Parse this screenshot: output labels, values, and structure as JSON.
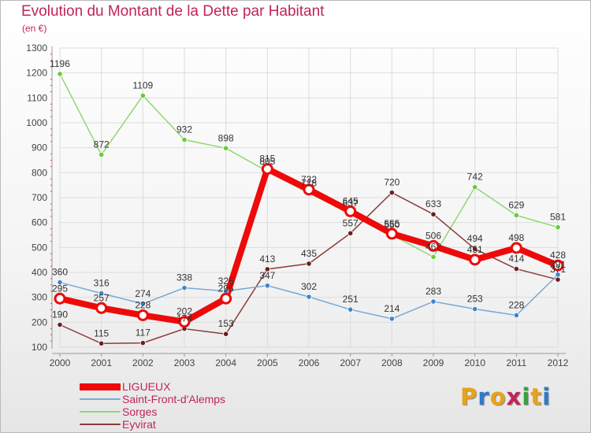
{
  "header": {
    "title": "Evolution du Montant de la Dette par Habitant",
    "subtitle": "(en €)"
  },
  "brand": {
    "letters": [
      "P",
      "r",
      "o",
      "x",
      "i",
      "t",
      "i"
    ],
    "colors": [
      "#e8a317",
      "#2f79c8",
      "#e8a317",
      "#c0245c",
      "#3aa03a",
      "#e8a317",
      "#2f79c8"
    ]
  },
  "chart_data": {
    "type": "line",
    "title": "Evolution du Montant de la Dette par Habitant",
    "subtitle": "(en €)",
    "xlabel": "",
    "ylabel": "",
    "x": [
      2000,
      2001,
      2002,
      2003,
      2004,
      2005,
      2006,
      2007,
      2008,
      2009,
      2010,
      2011,
      2012
    ],
    "x_labels": [
      "2000",
      "2001",
      "2002",
      "2003",
      "2004",
      "2005",
      "2006",
      "2007",
      "2008",
      "2009",
      "2010",
      "2011",
      "2012"
    ],
    "ylim": [
      100,
      1300
    ],
    "yticks": [
      100,
      200,
      300,
      400,
      500,
      600,
      700,
      800,
      900,
      1000,
      1100,
      1200,
      1300
    ],
    "ytick_labels": [
      "100",
      "200",
      "300",
      "400",
      "500",
      "600",
      "700",
      "800",
      "900",
      "1000",
      "1100",
      "1200",
      "1300"
    ],
    "grid": true,
    "legend_position": "bottom-left",
    "series": [
      {
        "name": "Sorges",
        "color": "#8fd870",
        "marker_color": "#66cc3a",
        "values": [
          1196,
          872,
          1109,
          932,
          898,
          805,
          718,
          637,
          550,
          462,
          742,
          629,
          581
        ],
        "value_labels": [
          "1196",
          "872",
          "1109",
          "932",
          "898",
          "805",
          "718",
          "637",
          "550",
          "462",
          "742",
          "629",
          "581"
        ]
      },
      {
        "name": "Eyvirat",
        "color": "#8c3a3a",
        "marker_color": "#6b1f1f",
        "values": [
          190,
          115,
          117,
          174,
          153,
          413,
          435,
          557,
          720,
          633,
          494,
          414,
          371
        ],
        "value_labels": [
          "190",
          "115",
          "117",
          "174",
          "153",
          "413",
          "435",
          "557",
          "720",
          "633",
          "494",
          "414",
          "371"
        ]
      },
      {
        "name": "Saint-Front-d'Alemps",
        "color": "#79a9d4",
        "marker_color": "#3f86c8",
        "values": [
          360,
          316,
          274,
          338,
          325,
          347,
          302,
          251,
          214,
          283,
          253,
          228,
          391
        ],
        "value_labels": [
          "360",
          "316",
          "274",
          "338",
          "325",
          "347",
          "302",
          "251",
          "214",
          "283",
          "253",
          "228",
          "391"
        ]
      },
      {
        "name": "LIGUEUX",
        "color": "#ee0a0a",
        "marker_color": "#ee0a0a",
        "values": [
          295,
          257,
          228,
          202,
          295,
          815,
          732,
          645,
          555,
          506,
          451,
          498,
          428
        ],
        "value_labels": [
          "295",
          "257",
          "228",
          "202",
          "295",
          "815",
          "732",
          "645",
          "555",
          "506",
          "451",
          "498",
          "428"
        ]
      }
    ]
  },
  "legend": {
    "items": [
      {
        "label": "LIGUEUX",
        "color": "#ee0a0a",
        "thickness": 9
      },
      {
        "label": "Saint-Front-d'Alemps",
        "color": "#79a9d4",
        "thickness": 2
      },
      {
        "label": "Sorges",
        "color": "#8fd870",
        "thickness": 2
      },
      {
        "label": "Eyvirat",
        "color": "#8c3a3a",
        "thickness": 2
      }
    ]
  }
}
